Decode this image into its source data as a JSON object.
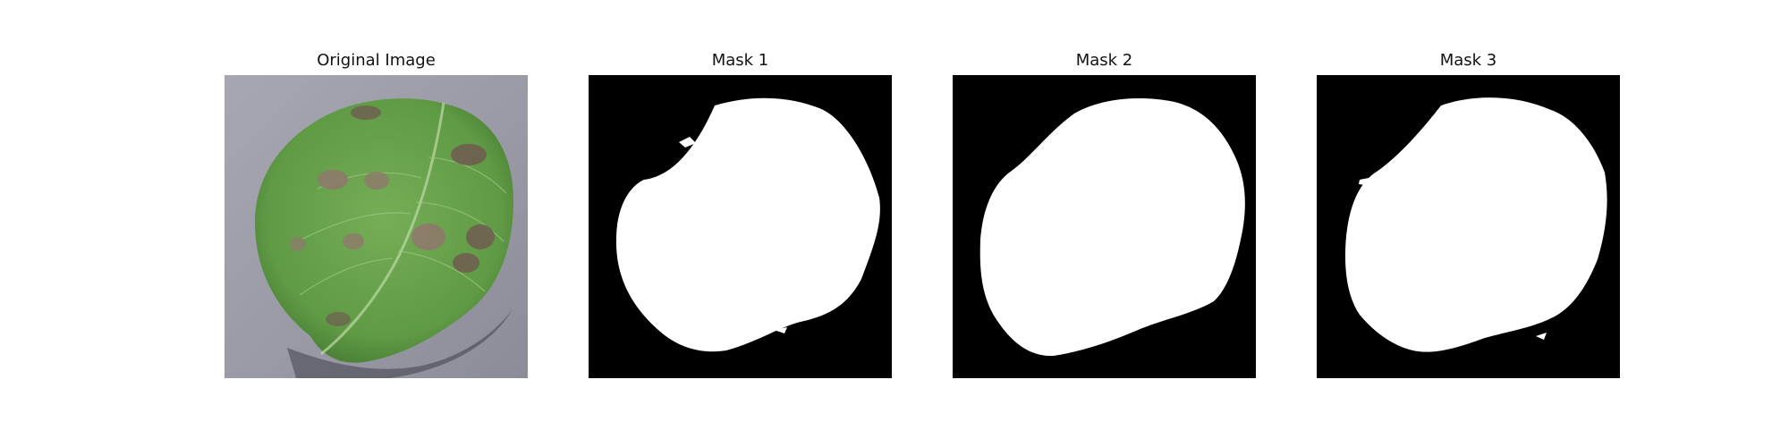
{
  "figure": {
    "panels": [
      {
        "title": "Original Image",
        "content": "leaf-photo"
      },
      {
        "title": "Mask 1",
        "content": "binary-mask"
      },
      {
        "title": "Mask 2",
        "content": "binary-mask"
      },
      {
        "title": "Mask 3",
        "content": "binary-mask"
      }
    ]
  },
  "colors": {
    "background_gray": "#9a9aa6",
    "leaf_green": "#5f9a45",
    "leaf_dark": "#3e6f2c",
    "lesion_brown": "#8e7b6b",
    "mask_black": "#000000",
    "mask_white": "#ffffff"
  }
}
